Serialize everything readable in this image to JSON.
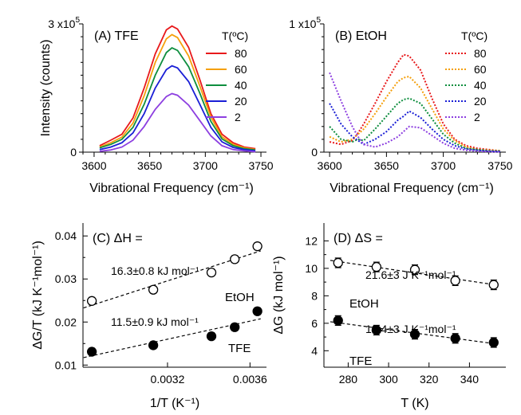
{
  "chart_data": [
    {
      "type": "line",
      "title": "(A) TFE",
      "xlabel": "Vibrational Frequency (cm⁻¹)",
      "ylabel": "Intensity (counts)",
      "xticks": [
        "3600",
        "3650",
        "3700",
        "3750"
      ],
      "yticks": [
        "0",
        "3 x10⁵"
      ],
      "xlim": [
        3590,
        3755
      ],
      "ylim": [
        0,
        300000
      ],
      "legend_title": "T(ºC)",
      "legend_position": "right",
      "line_style": "solid",
      "series": [
        {
          "name": "80",
          "color": "#e8191b",
          "x": [
            3605,
            3615,
            3625,
            3635,
            3645,
            3655,
            3665,
            3670,
            3675,
            3685,
            3695,
            3705,
            3715,
            3725,
            3735,
            3745
          ],
          "y": [
            15000,
            28000,
            42000,
            80000,
            150000,
            230000,
            286000,
            295000,
            288000,
            245000,
            170000,
            90000,
            42000,
            22000,
            12000,
            8000
          ]
        },
        {
          "name": "60",
          "color": "#f5a00c",
          "x": [
            3605,
            3615,
            3625,
            3635,
            3645,
            3655,
            3665,
            3670,
            3675,
            3685,
            3695,
            3705,
            3715,
            3725,
            3735,
            3745
          ],
          "y": [
            12000,
            22000,
            35000,
            68000,
            132000,
            210000,
            265000,
            275000,
            268000,
            225000,
            155000,
            82000,
            36000,
            18000,
            10000,
            6000
          ]
        },
        {
          "name": "40",
          "color": "#0e8e3e",
          "x": [
            3605,
            3615,
            3625,
            3635,
            3645,
            3655,
            3665,
            3670,
            3675,
            3685,
            3695,
            3705,
            3715,
            3725,
            3735,
            3745
          ],
          "y": [
            10000,
            18000,
            30000,
            58000,
            112000,
            180000,
            233000,
            244000,
            238000,
            200000,
            138000,
            72000,
            31000,
            15000,
            8000,
            5000
          ]
        },
        {
          "name": "20",
          "color": "#1a1fd6",
          "x": [
            3605,
            3615,
            3625,
            3635,
            3645,
            3655,
            3665,
            3670,
            3675,
            3685,
            3695,
            3705,
            3715,
            3725,
            3735,
            3745
          ],
          "y": [
            6000,
            12000,
            22000,
            45000,
            90000,
            150000,
            193000,
            202000,
            197000,
            165000,
            112000,
            58000,
            24000,
            11000,
            6000,
            3000
          ]
        },
        {
          "name": "2",
          "color": "#8d3fe0",
          "x": [
            3605,
            3615,
            3625,
            3635,
            3645,
            3655,
            3665,
            3670,
            3675,
            3685,
            3695,
            3705,
            3715,
            3725,
            3735,
            3745
          ],
          "y": [
            2000,
            5000,
            12000,
            28000,
            60000,
            100000,
            130000,
            137000,
            133000,
            110000,
            74000,
            38000,
            15000,
            6000,
            3000,
            1000
          ]
        }
      ]
    },
    {
      "type": "line",
      "title": "(B) EtOH",
      "xlabel": "Vibrational Frequency (cm⁻¹)",
      "ylabel": "",
      "xticks": [
        "3600",
        "3650",
        "3700",
        "3750"
      ],
      "yticks": [
        "0",
        "1 x10⁵"
      ],
      "xlim": [
        3595,
        3755
      ],
      "ylim": [
        0,
        100000
      ],
      "legend_title": "T(ºC)",
      "legend_position": "right",
      "line_style": "dotted",
      "series": [
        {
          "name": "80",
          "color": "#e8191b",
          "x": [
            3600,
            3610,
            3620,
            3625,
            3630,
            3640,
            3650,
            3660,
            3665,
            3670,
            3680,
            3690,
            3700,
            3710,
            3720,
            3730,
            3740,
            3750
          ],
          "y": [
            8000,
            6000,
            9000,
            15000,
            22000,
            38000,
            55000,
            70000,
            76000,
            75000,
            64000,
            42000,
            22000,
            10000,
            5000,
            3000,
            2000,
            1000
          ]
        },
        {
          "name": "60",
          "color": "#f5a00c",
          "x": [
            3600,
            3610,
            3620,
            3625,
            3630,
            3640,
            3650,
            3660,
            3665,
            3670,
            3680,
            3690,
            3700,
            3710,
            3720,
            3730,
            3740,
            3750
          ],
          "y": [
            12000,
            8000,
            10000,
            14000,
            18000,
            30000,
            43000,
            55000,
            58000,
            59000,
            50000,
            34000,
            18000,
            9000,
            4000,
            2000,
            1500,
            1000
          ]
        },
        {
          "name": "40",
          "color": "#0e8e3e",
          "x": [
            3600,
            3610,
            3620,
            3625,
            3630,
            3640,
            3650,
            3660,
            3665,
            3670,
            3680,
            3690,
            3700,
            3710,
            3720,
            3730,
            3740,
            3750
          ],
          "y": [
            20000,
            10000,
            8000,
            10000,
            9000,
            18000,
            28000,
            38000,
            41000,
            42000,
            38000,
            26000,
            14000,
            7000,
            3000,
            2000,
            1000,
            800
          ]
        },
        {
          "name": "20",
          "color": "#1a1fd6",
          "x": [
            3600,
            3610,
            3620,
            3625,
            3630,
            3640,
            3650,
            3660,
            3665,
            3670,
            3680,
            3690,
            3700,
            3710,
            3720,
            3730,
            3740,
            3750
          ],
          "y": [
            38000,
            22000,
            12000,
            9000,
            6000,
            10000,
            16000,
            25000,
            28000,
            32000,
            27000,
            18000,
            10000,
            5000,
            2500,
            1500,
            800,
            500
          ]
        },
        {
          "name": "2",
          "color": "#8d3fe0",
          "x": [
            3600,
            3610,
            3620,
            3625,
            3630,
            3640,
            3650,
            3660,
            3665,
            3670,
            3680,
            3690,
            3700,
            3710,
            3720,
            3730,
            3740,
            3750
          ],
          "y": [
            62000,
            40000,
            20000,
            12000,
            6000,
            4000,
            7000,
            12000,
            16000,
            20000,
            19000,
            13000,
            7000,
            3000,
            1500,
            800,
            400,
            200
          ]
        }
      ]
    },
    {
      "type": "scatter",
      "title": "(C) ΔH =",
      "xlabel": "1/T (K⁻¹)",
      "ylabel": "ΔG/T (kJ K⁻¹mol⁻¹)",
      "xticks": [
        "0.0032",
        "0.0036"
      ],
      "xtick_values": [
        0.0032,
        0.0036
      ],
      "yticks": [
        "0.01",
        "0.02",
        "0.03",
        "0.04"
      ],
      "ytick_values": [
        0.01,
        0.02,
        0.03,
        0.04
      ],
      "xlim": [
        0.00279,
        0.00368
      ],
      "ylim": [
        0.0095,
        0.043
      ],
      "fit_line_style": "dashed",
      "series": [
        {
          "name": "EtOH",
          "marker": "open-circle",
          "annotation": "16.3±0.8 kJ mol⁻¹",
          "x": [
            0.002833,
            0.003131,
            0.003413,
            0.003526,
            0.003636
          ],
          "y": [
            0.0249,
            0.0275,
            0.0315,
            0.0346,
            0.0376
          ],
          "error": [
            0.0008,
            0.0008,
            0.0008,
            0.0008,
            0.0008
          ]
        },
        {
          "name": "TFE",
          "marker": "filled-circle",
          "annotation": "11.5±0.9 kJ mol⁻¹",
          "x": [
            0.002833,
            0.003131,
            0.003413,
            0.003526,
            0.003636
          ],
          "y": [
            0.0131,
            0.0146,
            0.0167,
            0.0188,
            0.0225
          ],
          "error": [
            0.0008,
            0.0008,
            0.0008,
            0.0008,
            0.0008
          ]
        }
      ]
    },
    {
      "type": "scatter",
      "title": "(D) ΔS =",
      "xlabel": "T (K)",
      "ylabel": "ΔG (kJ mol⁻¹)",
      "xticks": [
        "280",
        "300",
        "320",
        "340"
      ],
      "xtick_values": [
        280,
        300,
        320,
        340
      ],
      "yticks": [
        "4",
        "6",
        "8",
        "10",
        "12"
      ],
      "ytick_values": [
        4,
        6,
        8,
        10,
        12
      ],
      "xlim": [
        268,
        358
      ],
      "ylim": [
        2.8,
        13.3
      ],
      "fit_line_style": "dashed",
      "series": [
        {
          "name": "EtOH",
          "marker": "open-circle",
          "annotation": "21.6±3 J K⁻¹mol⁻¹",
          "x": [
            275,
            294,
            313,
            333,
            352
          ],
          "y": [
            10.4,
            10.1,
            9.9,
            9.1,
            8.8
          ],
          "error": [
            0.35,
            0.35,
            0.35,
            0.35,
            0.35
          ]
        },
        {
          "name": "TFE",
          "marker": "filled-circle",
          "annotation": "19.4±3 J K⁻¹mol⁻¹",
          "x": [
            275,
            294,
            313,
            333,
            352
          ],
          "y": [
            6.2,
            5.5,
            5.2,
            4.9,
            4.6
          ],
          "error": [
            0.35,
            0.35,
            0.35,
            0.35,
            0.35
          ]
        }
      ]
    }
  ]
}
